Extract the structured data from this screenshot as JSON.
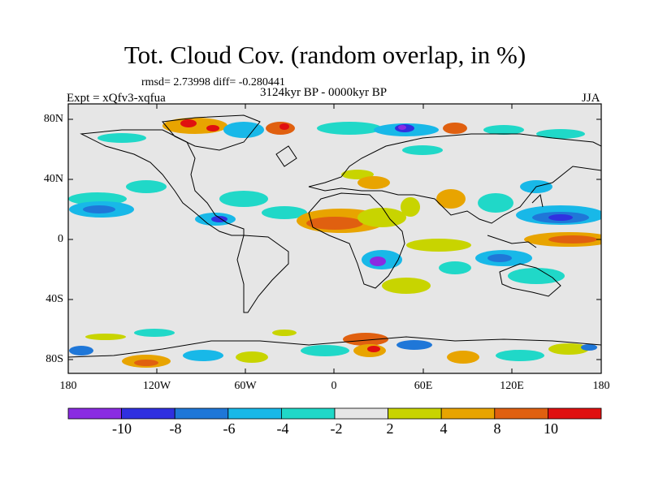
{
  "map": {
    "title": "Tot. Cloud Cov. (random overlap, in %)",
    "stats": "rmsd= 2.73998 diff= -0.280441",
    "period": "3124kyr BP - 0000kyr BP",
    "experiment": "Expt = xQfv3-xqfua",
    "season": "JJA",
    "lat_labels": [
      "80N",
      "40N",
      "0",
      "40S",
      "80S"
    ],
    "lon_labels": [
      "180",
      "120W",
      "60W",
      "0",
      "60E",
      "120E",
      "180"
    ],
    "colorbar_labels": [
      "-10",
      "-8",
      "-6",
      "-4",
      "-2",
      "2",
      "4",
      "8",
      "10"
    ],
    "colorbar_colors": [
      "#8a2be2",
      "#3030e0",
      "#1f77d8",
      "#18b8e8",
      "#20d8c8",
      "#e6e6e6",
      "#c8d400",
      "#e8a400",
      "#e06010",
      "#e01010"
    ]
  }
}
